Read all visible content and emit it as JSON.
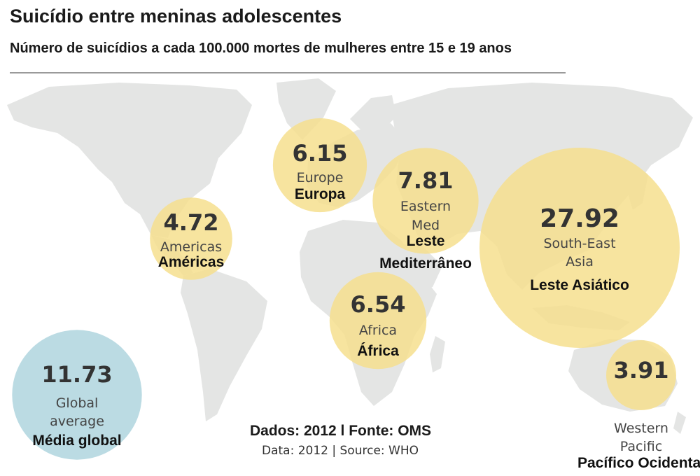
{
  "colors": {
    "bubble_region": "#f6df8e",
    "bubble_global": "#b7d9e2",
    "land": "#e4e5e4",
    "value_text": "#333333",
    "label_text": "#444444",
    "label_pt_text": "#111111"
  },
  "chart_data": {
    "type": "bubble-map",
    "title": "Suicídio entre meninas adolescentes",
    "subtitle": "Número de suicídios a cada 100.000 mortes de mulheres entre 15 e 19 anos",
    "source_pt": "Dados: 2012 l Fonte: OMS",
    "source_en": "Data: 2012  |  Source: WHO",
    "regions": [
      {
        "value": 6.15,
        "value_label": "6.15",
        "name_en": [
          "Europe"
        ],
        "name_pt": [
          "Europa"
        ],
        "group": "region"
      },
      {
        "value": 7.81,
        "value_label": "7.81",
        "name_en": [
          "Eastern",
          "Med"
        ],
        "name_pt": [
          "Leste",
          "Mediterrâneo"
        ],
        "group": "region"
      },
      {
        "value": 4.72,
        "value_label": "4.72",
        "name_en": [
          "Americas"
        ],
        "name_pt": [
          "Américas"
        ],
        "group": "region"
      },
      {
        "value": 27.92,
        "value_label": "27.92",
        "name_en": [
          "South-East",
          "Asia"
        ],
        "name_pt": [
          "Leste Asiático"
        ],
        "group": "region"
      },
      {
        "value": 6.54,
        "value_label": "6.54",
        "name_en": [
          "Africa"
        ],
        "name_pt": [
          "África"
        ],
        "group": "region"
      },
      {
        "value": 3.91,
        "value_label": "3.91",
        "name_en": [
          "Western",
          "Pacific"
        ],
        "name_pt": [
          "Pacífico Ocidental"
        ],
        "group": "region"
      },
      {
        "value": 11.73,
        "value_label": "11.73",
        "name_en": [
          "Global",
          "average"
        ],
        "name_pt": [
          "Média global"
        ],
        "group": "global"
      }
    ]
  }
}
